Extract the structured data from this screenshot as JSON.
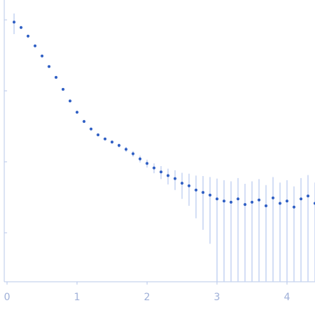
{
  "chart_data": {
    "type": "errorscatter",
    "x": [
      0.1,
      0.2,
      0.3,
      0.4,
      0.5,
      0.6,
      0.7,
      0.8,
      0.9,
      1.0,
      1.1,
      1.2,
      1.3,
      1.4,
      1.5,
      1.6,
      1.7,
      1.8,
      1.9,
      2.0,
      2.1,
      2.2,
      2.3,
      2.4,
      2.5,
      2.6,
      2.7,
      2.8,
      2.9,
      3.0,
      3.1,
      3.2,
      3.3,
      3.4,
      3.5,
      3.6,
      3.7,
      3.8,
      3.9,
      4.0,
      4.1,
      4.2,
      4.3,
      4.4
    ],
    "values": [
      9.3,
      7.8,
      5.9,
      4.3,
      3.1,
      2.2,
      1.55,
      1.05,
      0.72,
      0.5,
      0.37,
      0.29,
      0.24,
      0.21,
      0.19,
      0.17,
      0.15,
      0.13,
      0.11,
      0.095,
      0.082,
      0.072,
      0.064,
      0.058,
      0.05,
      0.046,
      0.04,
      0.037,
      0.034,
      0.03,
      0.028,
      0.027,
      0.03,
      0.025,
      0.027,
      0.029,
      0.024,
      0.031,
      0.026,
      0.028,
      0.023,
      0.03,
      0.033,
      0.026
    ],
    "errors": [
      3,
      0.3,
      0.12,
      0.08,
      0.05,
      0.035,
      0.025,
      0.02,
      0.015,
      0.012,
      0.01,
      0.009,
      0.009,
      0.009,
      0.01,
      0.011,
      0.012,
      0.012,
      0.012,
      0.012,
      0.013,
      0.015,
      0.016,
      0.018,
      0.02,
      0.022,
      0.024,
      0.026,
      0.027,
      0.028,
      0.027,
      0.026,
      0.029,
      0.024,
      0.026,
      0.028,
      0.023,
      0.03,
      0.025,
      0.027,
      0.022,
      0.029,
      0.032,
      0.025
    ],
    "color": "#2f5fc4",
    "error_color": "#c5d3f2",
    "xlim": [
      -0.04,
      4.4
    ],
    "xticks": [
      0,
      1,
      2,
      3,
      4
    ],
    "ylim": [
      0.00204,
      19.05
    ],
    "yticks": [
      0.01,
      0.1,
      1,
      10
    ],
    "ylog": true
  }
}
